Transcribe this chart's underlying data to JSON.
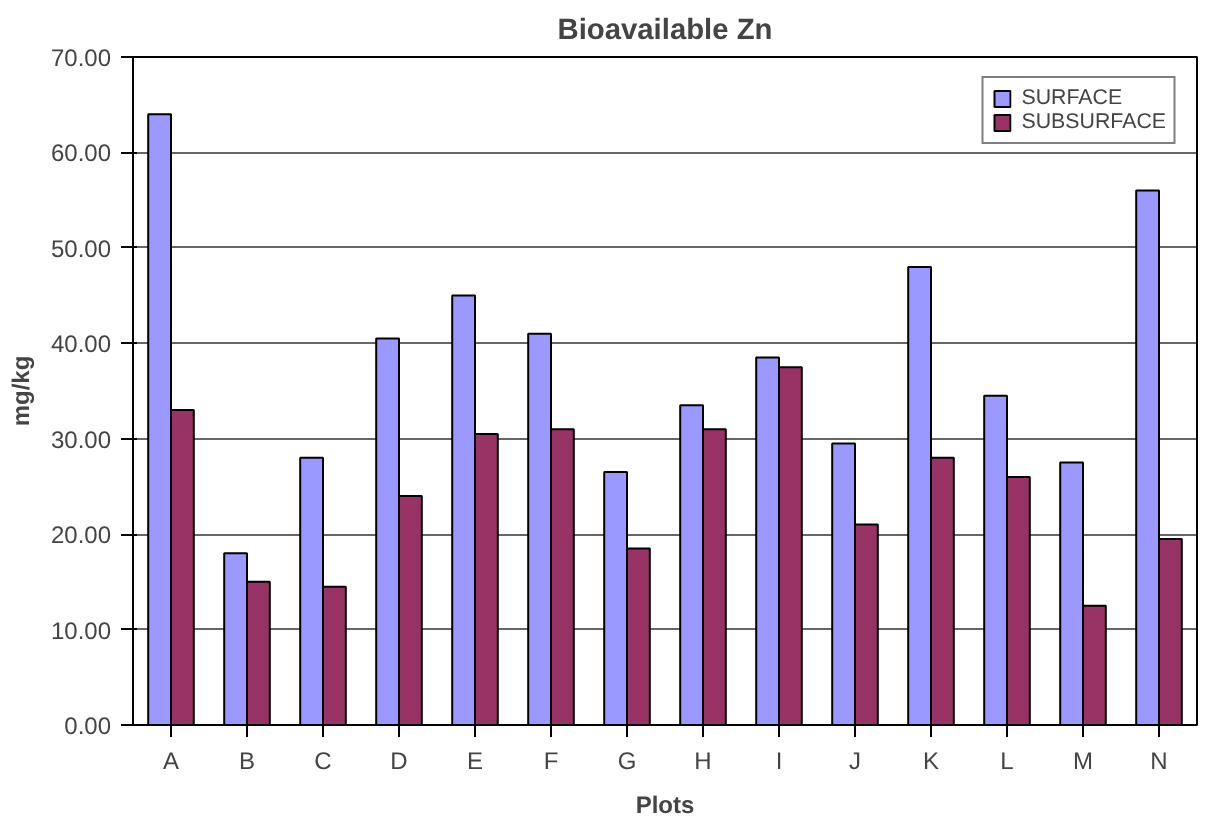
{
  "chart_data": {
    "type": "bar",
    "title": "Bioavailable Zn",
    "xlabel": "Plots",
    "ylabel": "mg/kg",
    "categories": [
      "A",
      "B",
      "C",
      "D",
      "E",
      "F",
      "G",
      "H",
      "I",
      "J",
      "K",
      "L",
      "M",
      "N"
    ],
    "series": [
      {
        "name": "SURFACE",
        "color": "#9999ff",
        "values": [
          64,
          18,
          28,
          40.5,
          45,
          41,
          26.5,
          33.5,
          38.5,
          29.5,
          48,
          34.5,
          27.5,
          56
        ]
      },
      {
        "name": "SUBSURFACE",
        "color": "#993366",
        "values": [
          33,
          15,
          14.5,
          24,
          30.5,
          31,
          18.5,
          31,
          37.5,
          21,
          28,
          26,
          12.5,
          19.5
        ]
      }
    ],
    "ylim": [
      0,
      70
    ],
    "yticks": [
      {
        "value": 0,
        "label": "0.00"
      },
      {
        "value": 10,
        "label": "10.00"
      },
      {
        "value": 20,
        "label": "20.00"
      },
      {
        "value": 30,
        "label": "30.00"
      },
      {
        "value": 40,
        "label": "40.00"
      },
      {
        "value": 50,
        "label": "50.00"
      },
      {
        "value": 60,
        "label": "60.00"
      },
      {
        "value": 70,
        "label": "70.00"
      }
    ],
    "grid": "y",
    "legend": "top right"
  }
}
